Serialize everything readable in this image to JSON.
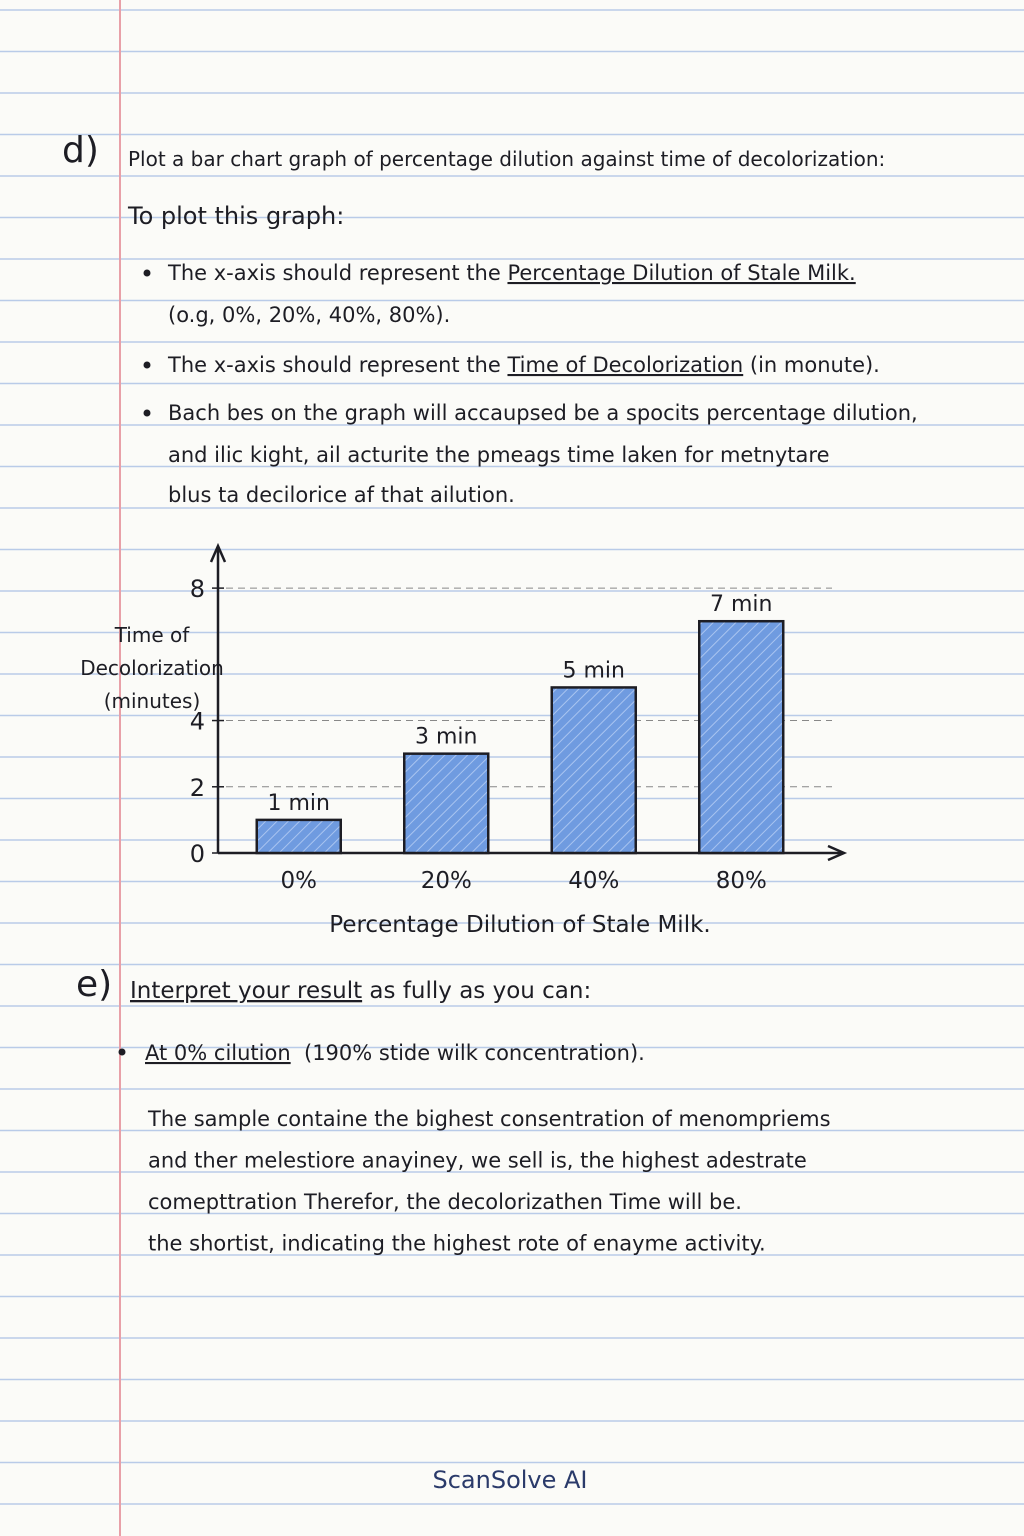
{
  "section_d": {
    "label": "d)",
    "heading": "Plot a bar chart graph of percentage dilution against time of decolorization:",
    "intro": "To plot this graph:",
    "bullets": [
      [
        [
          {
            "text": "The x-axis should represent the "
          },
          {
            "text": "Percentage Dilution of Stale Milk.",
            "underline": true
          }
        ],
        [
          {
            "text": "(o.g, 0%, 20%, 40%, 80%)."
          }
        ]
      ],
      [
        [
          {
            "text": "The x-axis should represent the "
          },
          {
            "text": "Time of Decolorization",
            "underline": true
          },
          {
            "text": " (in monute)."
          }
        ]
      ],
      [
        [
          {
            "text": "Bach bes on the graph will accaupsed be a spocits percentage dilution,"
          }
        ],
        [
          {
            "text": "and ilic kight, ail acturite the pmeags time laken for metnytare"
          }
        ],
        [
          {
            "text": "blus ta decilorice af that ailution."
          }
        ]
      ]
    ]
  },
  "chart_data": {
    "type": "bar",
    "categories": [
      "0%",
      "20%",
      "40%",
      "80%"
    ],
    "values": [
      1,
      3,
      5,
      7
    ],
    "value_labels": [
      "1 min",
      "3 min",
      "5 min",
      "7 min"
    ],
    "color": "#6f9be0",
    "y_label": [
      "Time of",
      "Decolorization",
      "(minutes)"
    ],
    "x_label": "Percentage Dilution of Stale Milk.",
    "ylim": [
      0,
      9
    ],
    "yticks": [
      0,
      2,
      4,
      8
    ],
    "grid": true
  },
  "section_e": {
    "label": "e)",
    "heading": [
      {
        "text": "Interpret your result",
        "underline": true
      },
      {
        "text": " as fully as you can:"
      }
    ],
    "bullet": [
      {
        "text": "At 0% cilution",
        "underline": true
      },
      {
        "text": "  (190% stide wilk concentration)."
      }
    ],
    "paragraph": [
      "The sample containe the bighest consentration of menompriems",
      "and ther melestiore anayiney, we sell is, the highest adestrate",
      "comepttration Therefor, the decolorizathen Time will be.",
      "the shortist, indicating the highest rote of enayme activity."
    ]
  },
  "footer": "ScanSolve AI"
}
